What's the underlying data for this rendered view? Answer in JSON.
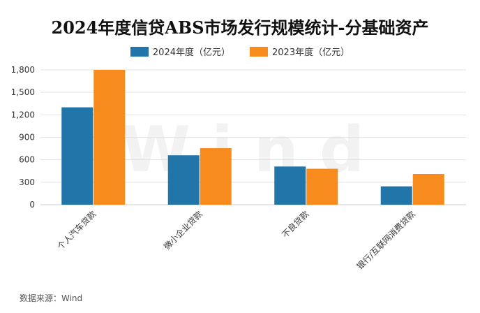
{
  "source": "数据来源：Wind",
  "watermark": "Wind",
  "chart_data": {
    "type": "bar",
    "title": "2024年度信贷ABS市场发行规模统计-分基础资产",
    "xlabel": "",
    "ylabel": "",
    "ylim": [
      0,
      1800
    ],
    "yticks": [
      0,
      300,
      600,
      900,
      1200,
      1500,
      1800
    ],
    "ytick_labels": [
      "0",
      "300",
      "600",
      "900",
      "1,200",
      "1,500",
      "1,800"
    ],
    "grid": true,
    "legend_position": "top-center",
    "categories": [
      "个人汽车贷款",
      "微小企业贷款",
      "不良贷款",
      "银行/互联网消费贷款"
    ],
    "series": [
      {
        "name": "2024年度（亿元）",
        "color": "#2175a8",
        "values": [
          1300,
          660,
          510,
          245
        ]
      },
      {
        "name": "2023年度（亿元）",
        "color": "#f78b1e",
        "values": [
          1800,
          755,
          480,
          410
        ]
      }
    ]
  }
}
